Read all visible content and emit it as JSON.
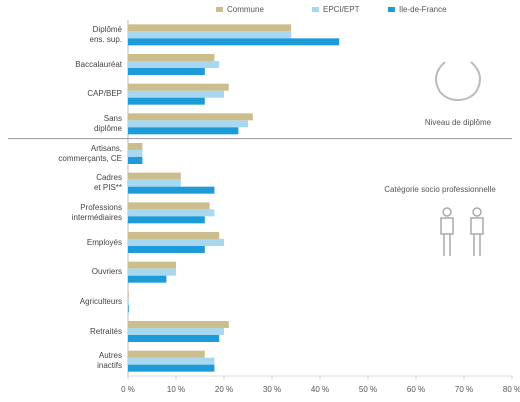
{
  "chart_data": {
    "type": "hbar",
    "categories": [
      "Diplômé\nens. sup.",
      "Baccalauréat",
      "CAP/BEP",
      "Sans\ndiplôme",
      "Artisans,\ncommerçants, CE",
      "Cadres\net PIS**",
      "Professions\nintermédiaires",
      "Employés",
      "Ouvriers",
      "Agriculteurs",
      "Retraités",
      "Autres\ninactifs"
    ],
    "series": [
      {
        "name": "Commune",
        "color": "#cbbd8c",
        "values": [
          34,
          18,
          21,
          26,
          3,
          11,
          17,
          19,
          10,
          0,
          21,
          16
        ]
      },
      {
        "name": "EPCI/EPT",
        "color": "#a8d8ef",
        "values": [
          34,
          19,
          20,
          25,
          3,
          11,
          18,
          20,
          10,
          0,
          20,
          18
        ]
      },
      {
        "name": "Ile-de-France",
        "color": "#1d9bd8",
        "values": [
          44,
          16,
          16,
          23,
          3,
          18,
          16,
          16,
          8,
          0,
          19,
          18
        ]
      }
    ],
    "annotations": [
      "Niveau de diplôme",
      "Catégorie socio professionnelle"
    ],
    "xlim": [
      0,
      80
    ],
    "xticks": [
      {
        "value": 0,
        "label": "0 %"
      },
      {
        "value": 10,
        "label": "10 %"
      },
      {
        "value": 20,
        "label": "20 %"
      },
      {
        "value": 30,
        "label": "30 %"
      },
      {
        "value": 40,
        "label": "40 %"
      },
      {
        "value": 50,
        "label": "50 %"
      },
      {
        "value": 60,
        "label": "60 %"
      },
      {
        "value": 70,
        "label": "70 %"
      },
      {
        "value": 80,
        "label": "80 %"
      }
    ],
    "grid": false,
    "legend": "top"
  }
}
